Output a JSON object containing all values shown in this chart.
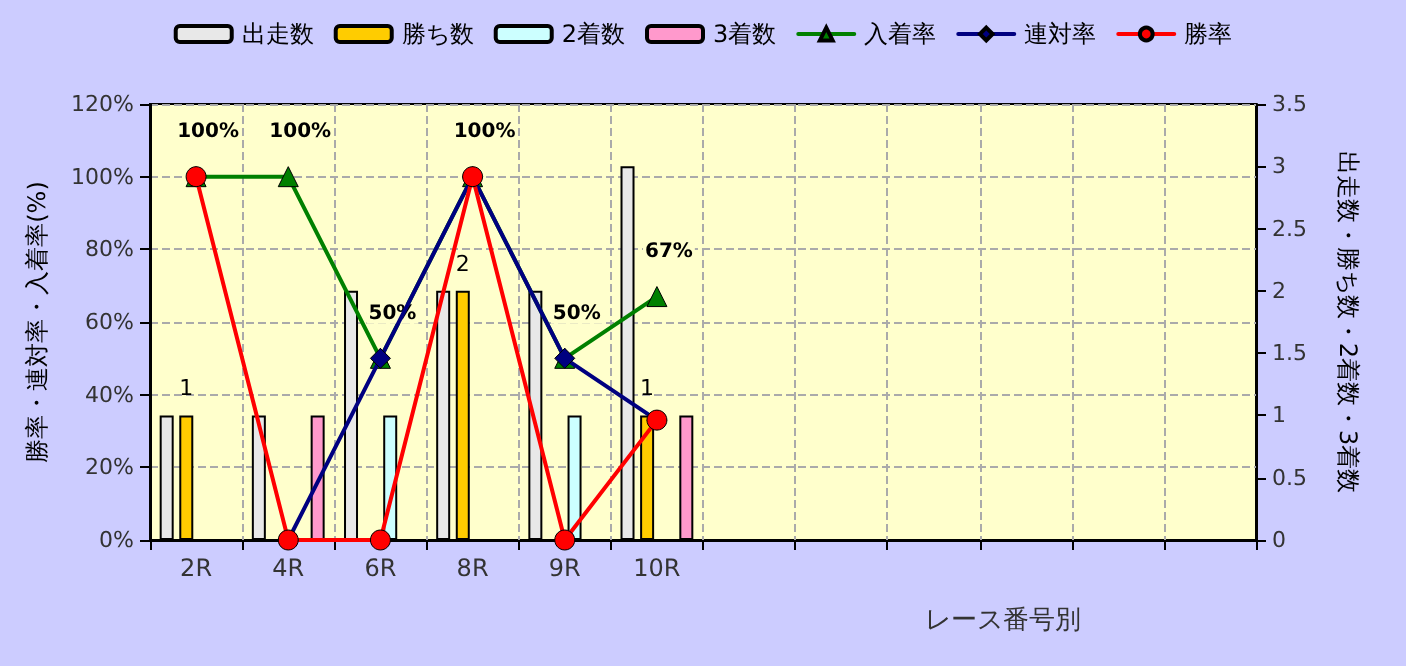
{
  "chart_data": {
    "type": "bar",
    "xlabel": "レース番号別",
    "ylabel": "勝率・連対率・入着率(%)",
    "y2label": "出走数・勝ち数・2着数・3着数",
    "categories": [
      "2R",
      "4R",
      "6R",
      "8R",
      "9R",
      "10R",
      null,
      null,
      null,
      null,
      null,
      null
    ],
    "series": [
      {
        "name": "出走数",
        "axis": "y2",
        "color": "#e8e8e8",
        "values": [
          1,
          1,
          2,
          2,
          2,
          3,
          null,
          null,
          null,
          null,
          null,
          null
        ]
      },
      {
        "name": "勝ち数",
        "axis": "y2",
        "color": "#ffcc00",
        "values": [
          1,
          0,
          0,
          2,
          0,
          1,
          null,
          null,
          null,
          null,
          null,
          null
        ],
        "value_labels": [
          "1",
          null,
          null,
          "2",
          null,
          "1",
          null,
          null,
          null,
          null,
          null,
          null
        ]
      },
      {
        "name": "2着数",
        "axis": "y2",
        "color": "#ccffff",
        "values": [
          0,
          0,
          1,
          0,
          1,
          0,
          null,
          null,
          null,
          null,
          null,
          null
        ]
      },
      {
        "name": "3着数",
        "axis": "y2",
        "color": "#ff99cc",
        "values": [
          0,
          1,
          0,
          0,
          0,
          1,
          null,
          null,
          null,
          null,
          null,
          null
        ]
      },
      {
        "name": "入着率",
        "type": "line",
        "color": "#008000",
        "marker": "triangle",
        "values": [
          100,
          100,
          50,
          100,
          50,
          67,
          null,
          null,
          null,
          null,
          null,
          null
        ],
        "value_labels": [
          "100%",
          "100%",
          "50%",
          "100%",
          "50%",
          "67%",
          null,
          null,
          null,
          null,
          null,
          null
        ]
      },
      {
        "name": "連対率",
        "type": "line",
        "color": "#000080",
        "marker": "diamond",
        "values": [
          null,
          0,
          50,
          100,
          50,
          33,
          null,
          null,
          null,
          null,
          null,
          null
        ]
      },
      {
        "name": "勝率",
        "type": "line",
        "color": "#ff0000",
        "marker": "circle",
        "values": [
          100,
          0,
          0,
          100,
          0,
          33,
          null,
          null,
          null,
          null,
          null,
          null
        ]
      }
    ],
    "ylim": [
      0,
      120
    ],
    "yticks": [
      {
        "value": 0,
        "label": "0%"
      },
      {
        "value": 20,
        "label": "20%"
      },
      {
        "value": 40,
        "label": "40%"
      },
      {
        "value": 60,
        "label": "60%"
      },
      {
        "value": 80,
        "label": "80%"
      },
      {
        "value": 100,
        "label": "100%"
      },
      {
        "value": 120,
        "label": "120%"
      }
    ],
    "y2lim": [
      0,
      3.5
    ],
    "y2ticks": [
      0,
      0.5,
      1,
      1.5,
      2,
      2.5,
      3,
      3.5
    ],
    "grid": true,
    "legend": "top",
    "line_style": "solid"
  }
}
